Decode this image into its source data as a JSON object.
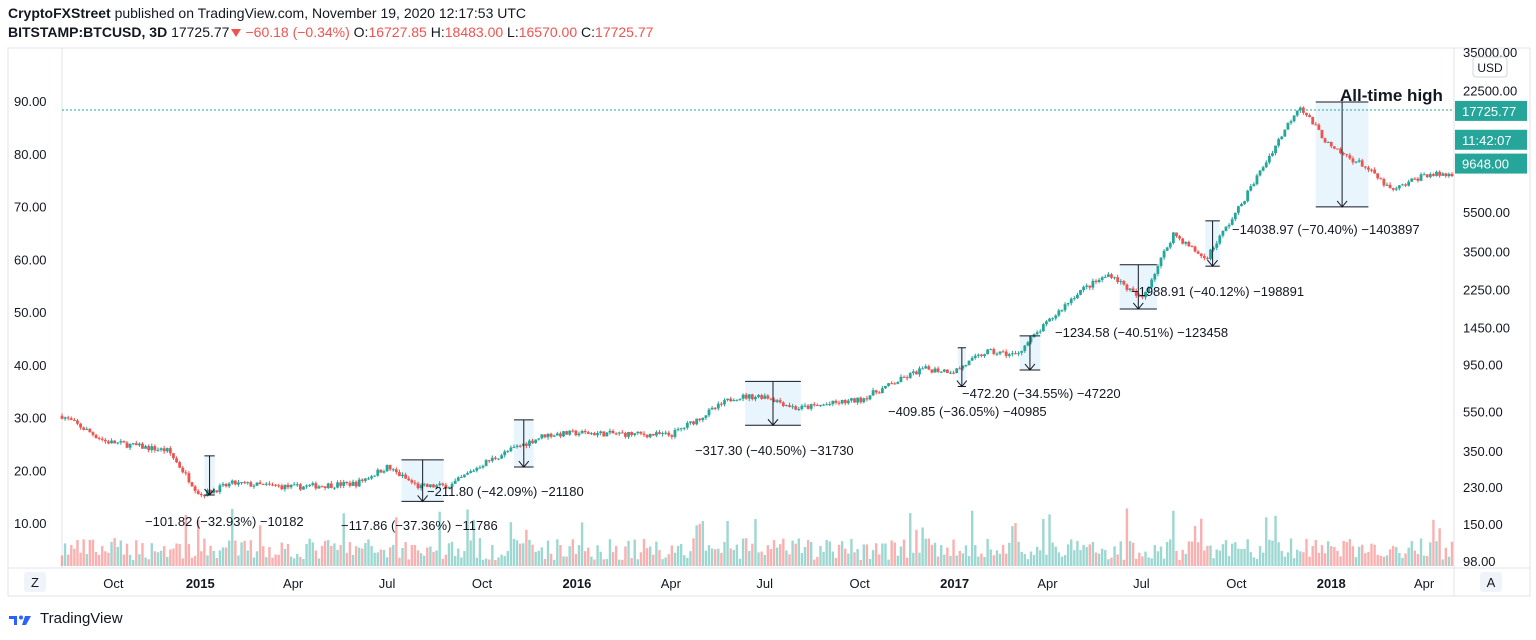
{
  "header": {
    "author": "CryptoFXStreet",
    "published_text": "published on TradingView.com, November 19, 2020 12:17:53 UTC",
    "symbol": "BITSTAMP:BTCUSD, 3D",
    "last": "17725.77",
    "change": "−60.18 (−0.34%)",
    "o_label": "O:",
    "o_value": "16727.85",
    "h_label": "H:",
    "h_value": "18483.00",
    "l_label": "L:",
    "l_value": "16570.00",
    "c_label": "C:",
    "c_value": "17725.77"
  },
  "footer": {
    "brand": "TradingView"
  },
  "buttons": {
    "z": "Z",
    "a": "A",
    "usd": "USD"
  },
  "colors": {
    "up": "#26a69a",
    "down": "#ef5350",
    "box_fill": "#e3f2fd",
    "price_label": "#26a69a",
    "dotted": "#26a69a"
  },
  "chart_data": {
    "type": "line",
    "title": "",
    "annotation": "All-time high",
    "left_axis": {
      "ticks": [
        10,
        20,
        30,
        40,
        50,
        60,
        70,
        80,
        90
      ],
      "tick_labels": [
        "10.00",
        "20.00",
        "30.00",
        "40.00",
        "50.00",
        "60.00",
        "70.00",
        "80.00",
        "90.00"
      ],
      "range": [
        0,
        98
      ]
    },
    "right_axis": {
      "scale": "log",
      "ticks": [
        98,
        150,
        230,
        350,
        550,
        950,
        1450,
        2250,
        3500,
        5500,
        22500,
        35000
      ],
      "tick_labels": [
        "98.00",
        "150.00",
        "230.00",
        "350.00",
        "550.00",
        "950.00",
        "1450.00",
        "2250.00",
        "3500.00",
        "5500.00",
        "22500.00",
        "35000.00"
      ],
      "price_labels": [
        {
          "text": "17725.77",
          "value": 17725.77
        },
        {
          "text": "11:42:07",
          "value": 12700
        },
        {
          "text": "9648.00",
          "value": 9648
        }
      ],
      "unit": "USD"
    },
    "x_axis": {
      "tick_labels": [
        "Oct",
        "2015",
        "Apr",
        "Jul",
        "Oct",
        "2016",
        "Apr",
        "Jul",
        "Oct",
        "2017",
        "Apr",
        "Jul",
        "Oct",
        "2018",
        "Apr"
      ]
    },
    "price_line": {
      "dates": [
        "2014-08",
        "2014-10",
        "2014-12",
        "2015-01",
        "2015-02",
        "2015-04",
        "2015-06",
        "2015-07",
        "2015-08",
        "2015-09",
        "2015-10",
        "2015-11",
        "2015-12",
        "2016-01",
        "2016-04",
        "2016-06",
        "2016-07",
        "2016-08",
        "2016-10",
        "2016-12",
        "2017-01",
        "2017-02",
        "2017-03",
        "2017-05",
        "2017-06",
        "2017-07",
        "2017-08",
        "2017-09",
        "2017-10",
        "2017-12",
        "2018-01",
        "2018-02",
        "2018-03",
        "2018-04"
      ],
      "close": [
        600,
        390,
        350,
        210,
        240,
        230,
        240,
        290,
        230,
        235,
        300,
        360,
        420,
        430,
        420,
        650,
        660,
        570,
        630,
        900,
        880,
        1100,
        1060,
        2200,
        2700,
        2000,
        4300,
        3200,
        5500,
        19000,
        11500,
        9500,
        7000,
        8500
      ]
    },
    "drawdowns": [
      {
        "label": "−101.82 (−32.93%) −10182"
      },
      {
        "label": "−117.86 (−37.36%) −11786"
      },
      {
        "label": "−211.80 (−42.09%) −21180"
      },
      {
        "label": "−317.30 (−40.50%) −31730"
      },
      {
        "label": "−409.85 (−36.05%) −40985"
      },
      {
        "label": "−472.20 (−34.55%) −47220"
      },
      {
        "label": "−1234.58 (−40.51%) −123458"
      },
      {
        "label": "−1988.91 (−40.12%) −198891"
      },
      {
        "label": "−14038.97 (−70.40%) −1403897"
      }
    ],
    "volume": "bars"
  }
}
